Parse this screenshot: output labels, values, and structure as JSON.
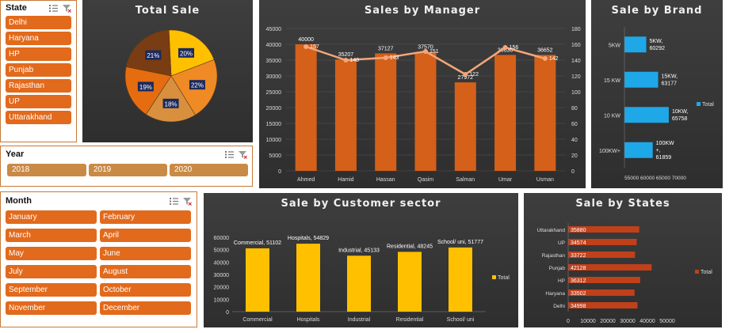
{
  "slicers": {
    "state": {
      "title": "State",
      "items": [
        "Delhi",
        "Haryana",
        "HP",
        "Punjab",
        "Rajasthan",
        "UP",
        "Uttarakhand"
      ]
    },
    "year": {
      "title": "Year",
      "items": [
        "2018",
        "2019",
        "2020"
      ]
    },
    "month": {
      "title": "Month",
      "items": [
        "January",
        "February",
        "March",
        "April",
        "May",
        "June",
        "July",
        "August",
        "September",
        "October",
        "November",
        "December"
      ]
    }
  },
  "colors": {
    "accent": "#e26a1c",
    "year_button": "#c98a46",
    "panel_bg": "#333333",
    "bar_orange": "#d4601a",
    "bar_blue": "#1ea8e8",
    "bar_yellow": "#ffc000",
    "bar_red": "#c0401a",
    "line": "#f4a67a"
  },
  "chart_data": [
    {
      "id": "total_sale",
      "type": "pie",
      "title": "Total Sale",
      "slices": [
        {
          "label": "20%",
          "value": 20,
          "color": "#ffc000"
        },
        {
          "label": "22%",
          "value": 22,
          "color": "#ef8a24"
        },
        {
          "label": "18%",
          "value": 18,
          "color": "#d9903e"
        },
        {
          "label": "19%",
          "value": 19,
          "color": "#e66c10"
        },
        {
          "label": "21%",
          "value": 21,
          "color": "#7a3c12"
        }
      ]
    },
    {
      "id": "sales_by_manager",
      "type": "bar",
      "title": "Sales  by Manager",
      "categories": [
        "Ahmed",
        "Hamid",
        "Hassan",
        "Qasim",
        "Salman",
        "Umar",
        "Usman"
      ],
      "series": [
        {
          "values": [
            40000,
            35207,
            37127,
            37570,
            27972,
            36636,
            36652
          ],
          "labels": [
            "40000",
            "35207",
            "37127",
            "37570",
            "27972",
            "36636",
            "36652"
          ]
        },
        {
          "values": [
            157,
            140,
            143,
            151,
            122,
            156,
            142
          ],
          "labels": [
            "157",
            "140",
            "143",
            "151",
            "122",
            "156",
            "142"
          ],
          "axis": "right"
        }
      ],
      "ylim": [
        0,
        45000
      ],
      "yticks": [
        "0",
        "5000",
        "10000",
        "15000",
        "20000",
        "25000",
        "30000",
        "35000",
        "40000",
        "45000"
      ],
      "y2lim": [
        0,
        180
      ],
      "y2ticks": [
        "0",
        "20",
        "40",
        "60",
        "80",
        "100",
        "120",
        "140",
        "160",
        "180"
      ]
    },
    {
      "id": "sale_by_brand",
      "type": "bar",
      "orientation": "horizontal",
      "title": "Sale by Brand",
      "categories": [
        "5KW",
        "15KW",
        "10KW",
        "100KW+"
      ],
      "category_labels": [
        "5KW",
        "15 KW",
        "10 KW",
        "100KW+"
      ],
      "data_labels": [
        [
          "5KW,",
          "60292"
        ],
        [
          "15KW,",
          "63177"
        ],
        [
          "10KW,",
          "65758"
        ],
        [
          "100KW",
          "+,",
          "61859"
        ]
      ],
      "series": [
        {
          "name": "Total",
          "values": [
            60292,
            63177,
            65758,
            61859
          ]
        }
      ],
      "xlim": [
        55000,
        70000
      ],
      "xtick_text": "55000 60000 65000 70000",
      "legend": "right"
    },
    {
      "id": "sale_by_customer_sector",
      "type": "bar",
      "title": "Sale by Customer sector",
      "categories": [
        "Commercial",
        "Hospitals",
        "Industrial",
        "Residential",
        "School/ uni"
      ],
      "data_labels": [
        "Commercial, 51102",
        "Hospitals, 54829",
        "Industrial, 45133",
        "Residential, 48245",
        "School/ uni, 51777"
      ],
      "series": [
        {
          "name": "Total",
          "values": [
            51102,
            54829,
            45133,
            48245,
            51777
          ]
        }
      ],
      "ylim": [
        0,
        60000
      ],
      "yticks": [
        "0",
        "10000",
        "20000",
        "30000",
        "40000",
        "50000",
        "60000"
      ],
      "legend": "right"
    },
    {
      "id": "sale_by_states",
      "type": "bar",
      "orientation": "horizontal",
      "title": "Sale by States",
      "categories": [
        "Uttarakhand",
        "UP",
        "Rajasthan",
        "Punjab",
        "HP",
        "Haryana",
        "Delhi"
      ],
      "series": [
        {
          "name": "Total",
          "values": [
            35880,
            34574,
            33722,
            42128,
            36312,
            33502,
            34998
          ]
        }
      ],
      "xlim": [
        0,
        60000
      ],
      "xticks": [
        "0",
        "10000",
        "20000",
        "30000",
        "40000",
        "50000"
      ],
      "legend": "right"
    }
  ]
}
